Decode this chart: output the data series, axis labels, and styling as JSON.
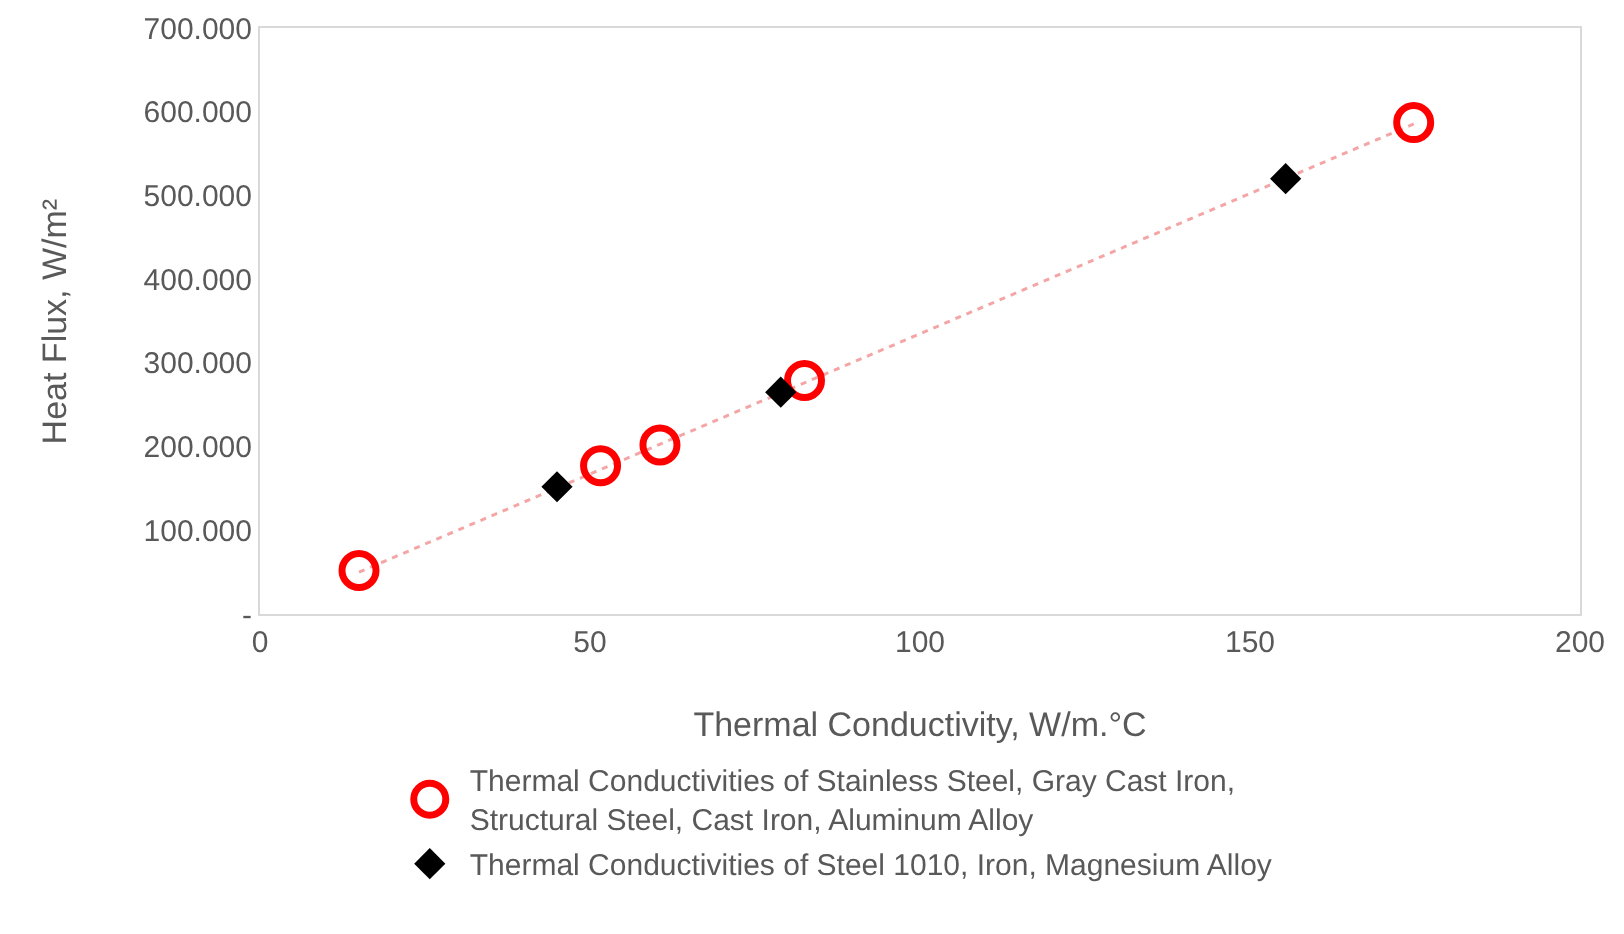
{
  "chart_data": {
    "type": "scatter",
    "xlabel": "Thermal Conductivity, W/m.°C",
    "ylabel": "Heat Flux, W/m²",
    "xlim": [
      0,
      200
    ],
    "xticks": [
      0,
      50,
      100,
      150,
      200
    ],
    "ylim": [
      0,
      700000
    ],
    "yticks": [
      {
        "value": 0,
        "label": "-"
      },
      {
        "value": 100000,
        "label": "100.000"
      },
      {
        "value": 200000,
        "label": "200.000"
      },
      {
        "value": 300000,
        "label": "300.000"
      },
      {
        "value": 400000,
        "label": "400.000"
      },
      {
        "value": 500000,
        "label": "500.000"
      },
      {
        "value": 600000,
        "label": "600.000"
      },
      {
        "value": 700000,
        "label": "700.000"
      }
    ],
    "grid": false,
    "legend": "bottom",
    "series": [
      {
        "type": "line",
        "color": "#f4a6a6",
        "line_style": "dotted",
        "marker": "none",
        "x": [
          15,
          175
        ],
        "values": [
          50000,
          586000
        ]
      },
      {
        "name": "Thermal Conductivities of Stainless Steel, Gray Cast Iron, Structural Steel, Cast Iron, Aluminum Alloy",
        "color": "#ff0000",
        "marker": "circle",
        "x": [
          15,
          51.6,
          60.6,
          82.5,
          174.8
        ],
        "values": [
          52000,
          177000,
          202000,
          279000,
          587000
        ]
      },
      {
        "name": "Thermal Conductivities of Steel 1010, Iron, Magnesium Alloy",
        "color": "#000000",
        "marker": "diamond",
        "x": [
          45,
          78.9,
          155.4
        ],
        "values": [
          152000,
          265000,
          520000
        ]
      }
    ]
  }
}
